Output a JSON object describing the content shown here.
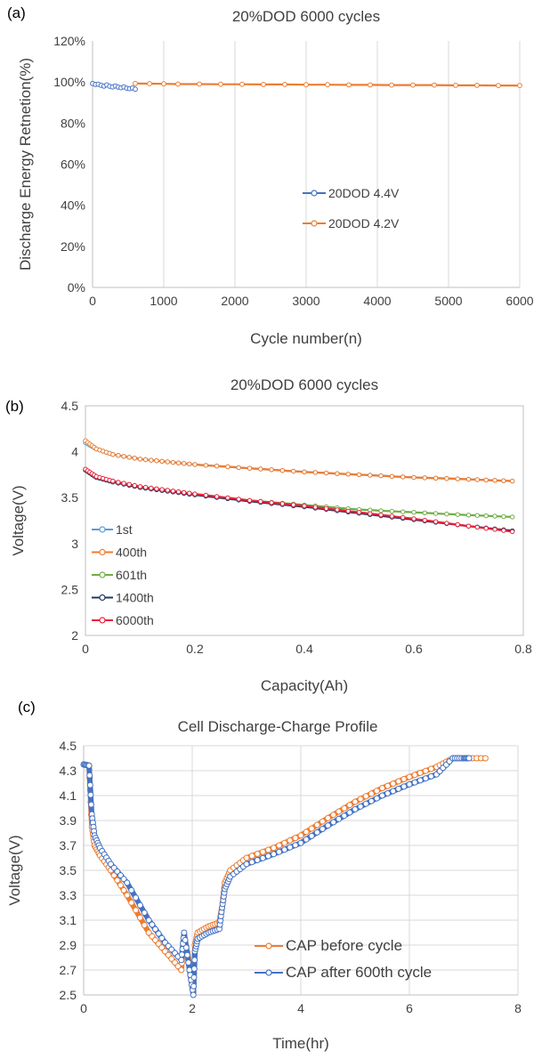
{
  "chart_data": [
    {
      "panel_label": "(a)",
      "type": "scatter",
      "title": "20%DOD 6000 cycles",
      "xlabel": "Cycle number(n)",
      "ylabel": "Discharge Energy Retnetion(%)",
      "xlim": [
        0,
        6000
      ],
      "ylim": [
        0,
        120
      ],
      "xticks": [
        "0",
        "1000",
        "2000",
        "3000",
        "4000",
        "5000",
        "6000"
      ],
      "yticks": [
        "0%",
        "20%",
        "40%",
        "60%",
        "80%",
        "100%",
        "120%"
      ],
      "grid": "vertical",
      "legend_position": "center",
      "series": [
        {
          "name": "20DOD 4.4V",
          "color": "#4472C4",
          "x": [
            0,
            40,
            80,
            120,
            160,
            200,
            240,
            280,
            320,
            360,
            400,
            440,
            480,
            520,
            560,
            600
          ],
          "y": [
            99.3,
            98.8,
            98.9,
            98.4,
            98.0,
            98.6,
            97.9,
            97.6,
            98.1,
            97.5,
            97.2,
            97.6,
            97.0,
            96.8,
            97.1,
            96.5
          ]
        },
        {
          "name": "20DOD 4.2V",
          "color": "#ED7D31",
          "x": [
            600,
            800,
            1000,
            1200,
            1500,
            1800,
            2100,
            2400,
            2700,
            3000,
            3300,
            3600,
            3900,
            4200,
            4500,
            4800,
            5100,
            5400,
            5700,
            6000
          ],
          "y": [
            99.3,
            99.2,
            99.1,
            99.0,
            99.0,
            98.9,
            98.9,
            98.8,
            98.8,
            98.7,
            98.7,
            98.6,
            98.6,
            98.5,
            98.5,
            98.5,
            98.4,
            98.4,
            98.3,
            98.3
          ]
        }
      ]
    },
    {
      "panel_label": "(b)",
      "type": "line",
      "title": "20%DOD 6000 cycles",
      "xlabel": "Capacity(Ah)",
      "ylabel": "Voltage(V)",
      "xlim": [
        0,
        0.8
      ],
      "ylim": [
        2,
        4.5
      ],
      "xticks": [
        "0",
        "0.2",
        "0.4",
        "0.6",
        "0.8"
      ],
      "yticks": [
        "2",
        "2.5",
        "3",
        "3.5",
        "4",
        "4.5"
      ],
      "grid": "none",
      "legend_position": "bottom-left",
      "series": [
        {
          "name": "1st",
          "color": "#5B9BD5",
          "x": [
            0.0,
            0.02,
            0.05,
            0.1,
            0.15,
            0.2,
            0.3,
            0.4,
            0.5,
            0.6,
            0.7,
            0.78
          ],
          "y": [
            4.1,
            4.03,
            3.97,
            3.92,
            3.89,
            3.86,
            3.82,
            3.78,
            3.75,
            3.72,
            3.7,
            3.68
          ]
        },
        {
          "name": "400th",
          "color": "#ED7D31",
          "x": [
            0.0,
            0.02,
            0.05,
            0.1,
            0.15,
            0.2,
            0.3,
            0.4,
            0.5,
            0.6,
            0.7,
            0.78
          ],
          "y": [
            4.12,
            4.03,
            3.97,
            3.92,
            3.89,
            3.86,
            3.82,
            3.78,
            3.75,
            3.72,
            3.7,
            3.68
          ]
        },
        {
          "name": "601th",
          "color": "#70AD47",
          "x": [
            0.0,
            0.02,
            0.05,
            0.1,
            0.15,
            0.2,
            0.3,
            0.4,
            0.5,
            0.6,
            0.7,
            0.78
          ],
          "y": [
            3.8,
            3.72,
            3.68,
            3.62,
            3.58,
            3.54,
            3.47,
            3.42,
            3.37,
            3.34,
            3.31,
            3.29
          ]
        },
        {
          "name": "1400th",
          "color": "#203864",
          "x": [
            0.0,
            0.02,
            0.05,
            0.1,
            0.15,
            0.2,
            0.3,
            0.4,
            0.5,
            0.6,
            0.7,
            0.78
          ],
          "y": [
            3.8,
            3.72,
            3.67,
            3.61,
            3.57,
            3.53,
            3.46,
            3.4,
            3.33,
            3.26,
            3.19,
            3.14
          ]
        },
        {
          "name": "6000th",
          "color": "#E8203A",
          "x": [
            0.0,
            0.02,
            0.05,
            0.1,
            0.15,
            0.2,
            0.3,
            0.4,
            0.5,
            0.6,
            0.7,
            0.78
          ],
          "y": [
            3.81,
            3.73,
            3.68,
            3.62,
            3.58,
            3.54,
            3.47,
            3.41,
            3.34,
            3.27,
            3.19,
            3.13
          ]
        }
      ]
    },
    {
      "panel_label": "(c)",
      "type": "line",
      "title": "Cell Discharge-Charge Profile",
      "xlabel": "Time(hr)",
      "ylabel": "Voltage(V)",
      "xlim": [
        0,
        8
      ],
      "ylim": [
        2.5,
        4.5
      ],
      "xticks": [
        "0",
        "2",
        "4",
        "6",
        "8"
      ],
      "yticks": [
        "2.5",
        "2.7",
        "2.9",
        "3.1",
        "3.3",
        "3.5",
        "3.7",
        "3.9",
        "4.1",
        "4.3",
        "4.5"
      ],
      "grid": "both",
      "legend_position": "bottom-right",
      "series": [
        {
          "name": "CAP before cycle",
          "color": "#ED7D31",
          "x": [
            0.0,
            0.1,
            0.15,
            0.2,
            0.3,
            0.5,
            0.8,
            1.2,
            1.5,
            1.8,
            1.85,
            1.95,
            2.02,
            2.05,
            2.1,
            2.3,
            2.5,
            2.55,
            2.6,
            2.7,
            3.0,
            3.5,
            4.0,
            4.5,
            5.0,
            5.5,
            6.0,
            6.5,
            6.8,
            7.0,
            7.4
          ],
          "y": [
            4.35,
            4.34,
            3.85,
            3.7,
            3.62,
            3.5,
            3.3,
            3.0,
            2.85,
            2.7,
            2.98,
            2.75,
            2.52,
            2.9,
            3.0,
            3.05,
            3.08,
            3.2,
            3.4,
            3.5,
            3.6,
            3.68,
            3.78,
            3.92,
            4.05,
            4.16,
            4.25,
            4.33,
            4.4,
            4.4,
            4.4
          ]
        },
        {
          "name": "CAP after 600th cycle",
          "color": "#4472C4",
          "x": [
            0.0,
            0.1,
            0.15,
            0.2,
            0.3,
            0.5,
            0.8,
            1.2,
            1.5,
            1.8,
            1.85,
            1.95,
            2.02,
            2.05,
            2.1,
            2.3,
            2.5,
            2.55,
            2.6,
            2.7,
            3.0,
            3.5,
            4.0,
            4.5,
            5.0,
            5.5,
            6.0,
            6.5,
            6.8,
            7.0,
            7.1
          ],
          "y": [
            4.35,
            4.34,
            3.95,
            3.78,
            3.68,
            3.55,
            3.4,
            3.1,
            2.92,
            2.78,
            3.0,
            2.7,
            2.5,
            2.85,
            2.95,
            3.0,
            3.03,
            3.2,
            3.35,
            3.45,
            3.55,
            3.63,
            3.72,
            3.86,
            3.99,
            4.1,
            4.19,
            4.27,
            4.4,
            4.4,
            4.4
          ]
        }
      ]
    }
  ]
}
